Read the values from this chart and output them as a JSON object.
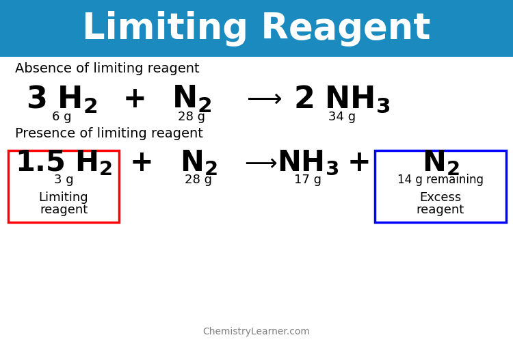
{
  "title": "Limiting Reagent",
  "title_bg_color": "#1B8BBF",
  "title_text_color": "#FFFFFF",
  "bg_color": "#FFFFFF",
  "section1_label": "Absence of limiting reagent",
  "section2_label": "Presence of limiting reagent",
  "watermark": "ChemistryLearner.com",
  "figsize": [
    7.5,
    5.03
  ],
  "dpi": 100
}
